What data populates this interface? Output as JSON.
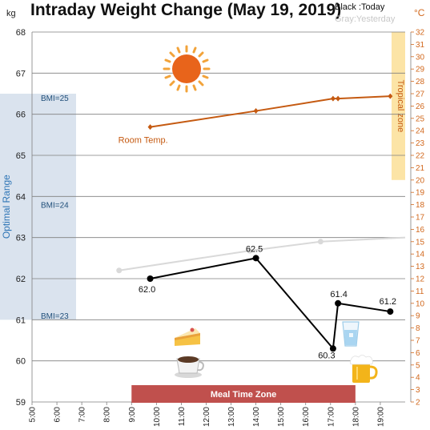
{
  "chart_data": {
    "type": "line",
    "title": "Intraday Weight Change (May 19, 2019)",
    "legend": {
      "today": "Black :Today",
      "yesterday": "Gray:Yesterday"
    },
    "y_left": {
      "unit": "kg",
      "range": [
        59,
        68
      ],
      "ticks": [
        59,
        60,
        61,
        62,
        63,
        64,
        65,
        66,
        67,
        68
      ]
    },
    "y_right": {
      "unit": "°C",
      "range": [
        2,
        32
      ],
      "ticks": [
        2,
        3,
        4,
        5,
        6,
        7,
        8,
        9,
        10,
        11,
        12,
        13,
        14,
        15,
        16,
        17,
        18,
        19,
        20,
        21,
        22,
        23,
        24,
        25,
        26,
        27,
        28,
        29,
        30,
        31,
        32
      ]
    },
    "x_axis": {
      "range_hours": [
        5,
        20
      ],
      "ticks": [
        "5:00",
        "6:00",
        "7:00",
        "8:00",
        "9:00",
        "10:00",
        "11:00",
        "12:00",
        "13:00",
        "14:00",
        "15:00",
        "16:00",
        "17:00",
        "18:00",
        "19:00"
      ]
    },
    "grid": true,
    "series": [
      {
        "key": "today",
        "axis": "left",
        "color": "#000000",
        "points": [
          {
            "x": 9.75,
            "y": 62.0,
            "label": "62.0"
          },
          {
            "x": 14.0,
            "y": 62.5,
            "label": "62.5"
          },
          {
            "x": 17.1,
            "y": 60.3,
            "label": "60.3"
          },
          {
            "x": 17.3,
            "y": 61.4,
            "label": "61.4"
          },
          {
            "x": 19.4,
            "y": 61.2,
            "label": "61.2"
          }
        ]
      },
      {
        "key": "yesterday",
        "axis": "left",
        "color": "#d9d9d9",
        "points": [
          {
            "x": 8.5,
            "y": 62.2
          },
          {
            "x": 13.75,
            "y": 62.68
          },
          {
            "x": 16.6,
            "y": 62.9
          },
          {
            "x": 20.0,
            "y": 63.0
          }
        ]
      },
      {
        "key": "room_temp",
        "axis": "right",
        "color": "#c55a11",
        "points": [
          {
            "x": 9.75,
            "y": 24.3
          },
          {
            "x": 14.0,
            "y": 25.6
          },
          {
            "x": 17.1,
            "y": 26.6
          },
          {
            "x": 17.3,
            "y": 26.6
          },
          {
            "x": 19.4,
            "y": 26.8
          }
        ]
      }
    ],
    "annotations": {
      "optimal_range": {
        "label": "Optimal Range",
        "kg_from": 61.0,
        "kg_to": 66.5,
        "color": "#dae3ee"
      },
      "bmi_lines": [
        {
          "label": "BMI=25",
          "kg": 66.4
        },
        {
          "label": "BMI=24",
          "kg": 63.8
        },
        {
          "label": "BMI=23",
          "kg": 61.1
        }
      ],
      "tropical_zone": {
        "label": "Tropical zone",
        "temp_from": 20,
        "temp_to": 32,
        "color": "#fce4a6"
      },
      "room_temp_label": "Room Temp.",
      "meal_zone": {
        "label": "Meal Time Zone",
        "from_hour": 9,
        "to_hour": 18,
        "color": "#c0504d"
      }
    },
    "icons": [
      "sun-icon",
      "cake-icon",
      "coffee-icon",
      "water-glass-icon",
      "beer-icon"
    ]
  }
}
